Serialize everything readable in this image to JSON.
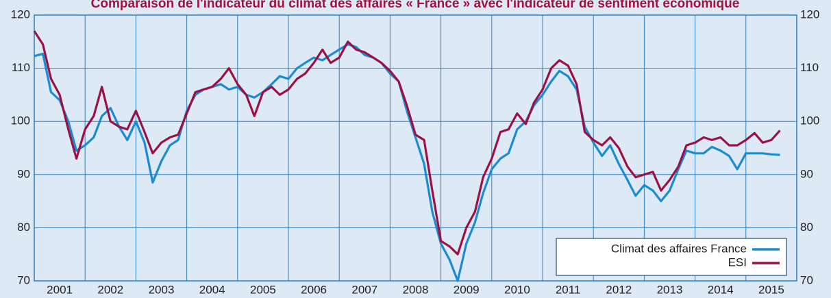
{
  "chart_data": {
    "type": "line",
    "title": "Comparaison de l'indicateur du climat des affaires « France » avec l'indicateur de sentiment économique",
    "x": [
      2001,
      2001.17,
      2001.33,
      2001.5,
      2001.67,
      2001.83,
      2002,
      2002.17,
      2002.33,
      2002.5,
      2002.67,
      2002.83,
      2003,
      2003.17,
      2003.33,
      2003.5,
      2003.67,
      2003.83,
      2004,
      2004.17,
      2004.33,
      2004.5,
      2004.67,
      2004.83,
      2005,
      2005.17,
      2005.33,
      2005.5,
      2005.67,
      2005.83,
      2006,
      2006.17,
      2006.33,
      2006.5,
      2006.67,
      2006.83,
      2007,
      2007.17,
      2007.33,
      2007.5,
      2007.67,
      2007.83,
      2008,
      2008.17,
      2008.33,
      2008.5,
      2008.67,
      2008.83,
      2009,
      2009.17,
      2009.33,
      2009.5,
      2009.67,
      2009.83,
      2010,
      2010.17,
      2010.33,
      2010.5,
      2010.67,
      2010.83,
      2011,
      2011.17,
      2011.33,
      2011.5,
      2011.67,
      2011.83,
      2012,
      2012.17,
      2012.33,
      2012.5,
      2012.67,
      2012.83,
      2013,
      2013.17,
      2013.33,
      2013.5,
      2013.67,
      2013.83,
      2014,
      2014.17,
      2014.33,
      2014.5,
      2014.67,
      2014.83,
      2015,
      2015.17,
      2015.33,
      2015.5,
      2015.67
    ],
    "series": [
      {
        "name": "Climat des affaires France",
        "color": "#1b8bd2",
        "values": [
          112.3,
          112.7,
          105.5,
          104,
          100,
          94.5,
          95.5,
          97,
          101,
          102.5,
          99,
          96.5,
          100,
          96,
          88.5,
          92.5,
          95.5,
          96.5,
          102,
          105,
          106,
          106.5,
          107,
          106,
          106.5,
          105,
          104.5,
          105.5,
          107,
          108.5,
          108,
          110,
          111,
          112,
          111.5,
          112.5,
          113.5,
          114.5,
          114,
          112.5,
          112,
          111,
          109,
          107.5,
          102,
          97,
          92,
          83,
          77,
          74,
          70,
          77,
          81,
          86.5,
          91,
          93,
          94,
          98.5,
          100,
          103,
          105,
          107.5,
          109.5,
          108.5,
          106,
          99,
          96,
          93.5,
          95.5,
          92,
          89,
          86,
          88,
          87,
          85,
          87,
          91,
          94.5,
          94,
          94,
          95.2,
          94.5,
          93.5,
          91,
          94,
          94,
          94,
          93.8,
          93.7
        ]
      },
      {
        "name": "ESI",
        "color": "#9b1146",
        "values": [
          117,
          114.5,
          108,
          105,
          98.5,
          93,
          98.5,
          101,
          106.5,
          100,
          99,
          98.5,
          102,
          98,
          94,
          96,
          97,
          97.5,
          101.5,
          105.5,
          106,
          106.5,
          108,
          110,
          107,
          105,
          101,
          105.5,
          106.5,
          105,
          106,
          108,
          109,
          111,
          113.5,
          111,
          112,
          115,
          113.5,
          113,
          112,
          111,
          109.5,
          107.5,
          103,
          97.5,
          96.5,
          87,
          77.5,
          76.5,
          75,
          80,
          83,
          89.5,
          93,
          98,
          98.5,
          101.5,
          99.5,
          103.5,
          106,
          110,
          111.5,
          110.5,
          107,
          98,
          96.5,
          95.5,
          97,
          95,
          91.5,
          89.5,
          90,
          90.5,
          87,
          89,
          91.5,
          95.5,
          96,
          97,
          96.5,
          97,
          95.5,
          95.5,
          96.5,
          97.8,
          96,
          96.5,
          98.3
        ]
      }
    ],
    "xlim": [
      2001,
      2016
    ],
    "xticks": [
      {
        "value": 2001.5,
        "label": "2001"
      },
      {
        "value": 2002.5,
        "label": "2002"
      },
      {
        "value": 2003.5,
        "label": "2003"
      },
      {
        "value": 2004.5,
        "label": "2004"
      },
      {
        "value": 2005.5,
        "label": "2005"
      },
      {
        "value": 2006.5,
        "label": "2006"
      },
      {
        "value": 2007.5,
        "label": "2007"
      },
      {
        "value": 2008.5,
        "label": "2008"
      },
      {
        "value": 2009.5,
        "label": "2009"
      },
      {
        "value": 2010.5,
        "label": "2010"
      },
      {
        "value": 2011.5,
        "label": "2011"
      },
      {
        "value": 2012.5,
        "label": "2012"
      },
      {
        "value": 2013.5,
        "label": "2013"
      },
      {
        "value": 2014.5,
        "label": "2014"
      },
      {
        "value": 2015.5,
        "label": "2015"
      }
    ],
    "xgrid": [
      2002,
      2003,
      2004,
      2005,
      2006,
      2007,
      2008,
      2009,
      2010,
      2011,
      2012,
      2013,
      2014,
      2015
    ],
    "ylim": [
      70,
      120
    ],
    "yticks": [
      70,
      80,
      90,
      100,
      110,
      120
    ],
    "y2lim": [
      70,
      120
    ],
    "y2ticks": [
      70,
      80,
      90,
      100,
      110,
      120
    ],
    "grid": true,
    "legend": "lower right"
  }
}
